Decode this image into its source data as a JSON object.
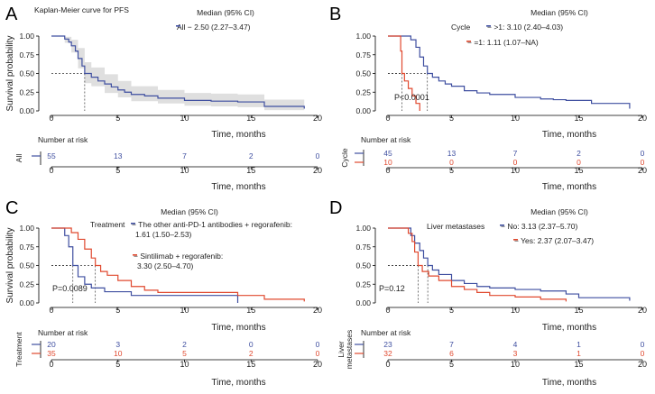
{
  "colors": {
    "blue": "#3f4fa0",
    "red": "#e0492f",
    "band": "#d9d9d9",
    "axis": "#000000",
    "text": "#222222"
  },
  "chart_data": [
    {
      "type": "line",
      "panel_letter": "A",
      "title": "Kaplan-Meier curve for PFS",
      "xlabel": "Time, months",
      "ylabel": "Survival probability",
      "xlim": [
        0,
        20
      ],
      "ylim": [
        0,
        1
      ],
      "x_ticks": [
        "0",
        "5",
        "10",
        "15",
        "20"
      ],
      "y_ticks": [
        "0.00",
        "0.25",
        "0.50",
        "0.75",
        "1.00"
      ],
      "legend_title": "Median (95% CI)",
      "pvalue": "",
      "group_label": "",
      "risk_title": "Number at risk",
      "risk_axis_label": "All",
      "risk_times": [
        0,
        5,
        10,
        15,
        20
      ],
      "series": [
        {
          "name": "All",
          "legend_text": "All  − 2.50 (2.27–3.47)",
          "legend_text2": "",
          "color": "blue",
          "median": 2.5,
          "points": [
            [
              0,
              1.0
            ],
            [
              0.8,
              1.0
            ],
            [
              1.0,
              0.96
            ],
            [
              1.3,
              0.92
            ],
            [
              1.5,
              0.87
            ],
            [
              1.8,
              0.8
            ],
            [
              2.0,
              0.7
            ],
            [
              2.3,
              0.6
            ],
            [
              2.5,
              0.5
            ],
            [
              3.0,
              0.45
            ],
            [
              3.5,
              0.4
            ],
            [
              4.0,
              0.36
            ],
            [
              4.5,
              0.32
            ],
            [
              5.0,
              0.28
            ],
            [
              5.5,
              0.25
            ],
            [
              6.0,
              0.22
            ],
            [
              7.0,
              0.2
            ],
            [
              8.0,
              0.17
            ],
            [
              10.0,
              0.14
            ],
            [
              12.0,
              0.13
            ],
            [
              14.0,
              0.12
            ],
            [
              16.0,
              0.06
            ],
            [
              19.0,
              0.03
            ]
          ],
          "band_upper": [
            [
              0,
              1.0
            ],
            [
              1.0,
              0.99
            ],
            [
              1.5,
              0.95
            ],
            [
              2.0,
              0.84
            ],
            [
              2.5,
              0.65
            ],
            [
              3.0,
              0.58
            ],
            [
              4.0,
              0.49
            ],
            [
              5.0,
              0.4
            ],
            [
              6.0,
              0.33
            ],
            [
              8.0,
              0.28
            ],
            [
              10.0,
              0.24
            ],
            [
              12.0,
              0.23
            ],
            [
              14.0,
              0.22
            ],
            [
              16.0,
              0.15
            ],
            [
              19.0,
              0.09
            ]
          ],
          "band_lower": [
            [
              0,
              1.0
            ],
            [
              1.0,
              0.91
            ],
            [
              1.5,
              0.78
            ],
            [
              2.0,
              0.57
            ],
            [
              2.5,
              0.37
            ],
            [
              3.0,
              0.33
            ],
            [
              4.0,
              0.24
            ],
            [
              5.0,
              0.18
            ],
            [
              6.0,
              0.13
            ],
            [
              8.0,
              0.1
            ],
            [
              10.0,
              0.07
            ],
            [
              12.0,
              0.06
            ],
            [
              14.0,
              0.05
            ],
            [
              16.0,
              0.01
            ],
            [
              19.0,
              0.0
            ]
          ],
          "risk": [
            "55",
            "13",
            "7",
            "2",
            "0"
          ]
        }
      ]
    },
    {
      "type": "line",
      "panel_letter": "B",
      "title": "",
      "xlabel": "Time, months",
      "ylabel": "",
      "xlim": [
        0,
        20
      ],
      "ylim": [
        0,
        1
      ],
      "x_ticks": [
        "0",
        "5",
        "10",
        "15",
        "20"
      ],
      "y_ticks": [
        "0.00",
        "0.25",
        "0.50",
        "0.75",
        "1.00"
      ],
      "legend_title": "Median (95% CI)",
      "pvalue": "P<0.0001",
      "group_label": "Cycle",
      "risk_title": "Number at risk",
      "risk_axis_label": "Cycle",
      "risk_times": [
        0,
        5,
        10,
        15,
        20
      ],
      "series": [
        {
          "name": ">1",
          "legend_text": "− >1: 3.10 (2.40–4.03)",
          "legend_text2": "",
          "color": "blue",
          "median": 3.1,
          "points": [
            [
              0,
              1.0
            ],
            [
              1.5,
              1.0
            ],
            [
              1.8,
              0.95
            ],
            [
              2.2,
              0.85
            ],
            [
              2.5,
              0.72
            ],
            [
              2.8,
              0.6
            ],
            [
              3.1,
              0.5
            ],
            [
              3.5,
              0.45
            ],
            [
              4.0,
              0.4
            ],
            [
              4.5,
              0.36
            ],
            [
              5.0,
              0.33
            ],
            [
              6.0,
              0.27
            ],
            [
              7.0,
              0.24
            ],
            [
              8.0,
              0.22
            ],
            [
              10.0,
              0.18
            ],
            [
              12.0,
              0.16
            ],
            [
              13.0,
              0.15
            ],
            [
              14.0,
              0.14
            ],
            [
              16.0,
              0.1
            ],
            [
              19.0,
              0.03
            ]
          ],
          "risk": [
            "45",
            "13",
            "7",
            "2",
            "0"
          ]
        },
        {
          "name": "=1",
          "legend_text": "− =1: 1.11 (1.07–NA)",
          "legend_text2": "",
          "color": "red",
          "median": 1.11,
          "points": [
            [
              0,
              1.0
            ],
            [
              0.9,
              1.0
            ],
            [
              1.0,
              0.8
            ],
            [
              1.1,
              0.5
            ],
            [
              1.3,
              0.4
            ],
            [
              1.6,
              0.3
            ],
            [
              1.9,
              0.2
            ],
            [
              2.2,
              0.1
            ],
            [
              2.5,
              0.0
            ]
          ],
          "risk": [
            "10",
            "0",
            "0",
            "0",
            "0"
          ]
        }
      ]
    },
    {
      "type": "line",
      "panel_letter": "C",
      "title": "",
      "xlabel": "Time, months",
      "ylabel": "Survival probability",
      "xlim": [
        0,
        20
      ],
      "ylim": [
        0,
        1
      ],
      "x_ticks": [
        "0",
        "5",
        "10",
        "15",
        "20"
      ],
      "y_ticks": [
        "0.00",
        "0.25",
        "0.50",
        "0.75",
        "1.00"
      ],
      "legend_title": "Median (95% CI)",
      "pvalue": "P=0.0089",
      "group_label": "Treatment",
      "risk_title": "Number at risk",
      "risk_axis_label": "Treatment",
      "risk_times": [
        0,
        5,
        10,
        15,
        20
      ],
      "series": [
        {
          "name": "The other anti-PD-1 antibodies + regorafenib",
          "legend_text": "− The other anti-PD-1 antibodies + regorafenib:",
          "legend_text2": "1.61 (1.50–2.53)",
          "color": "blue",
          "median": 1.61,
          "points": [
            [
              0,
              1.0
            ],
            [
              0.7,
              1.0
            ],
            [
              1.0,
              0.9
            ],
            [
              1.3,
              0.75
            ],
            [
              1.61,
              0.5
            ],
            [
              2.0,
              0.35
            ],
            [
              2.5,
              0.25
            ],
            [
              3.0,
              0.2
            ],
            [
              4.0,
              0.15
            ],
            [
              6.0,
              0.1
            ],
            [
              8.0,
              0.1
            ],
            [
              10.0,
              0.1
            ],
            [
              12.0,
              0.1
            ],
            [
              14.0,
              0.0
            ]
          ],
          "risk": [
            "20",
            "3",
            "2",
            "0",
            "0"
          ]
        },
        {
          "name": "Sintilimab + regorafenib",
          "legend_text": "− Sintilimab + regorafenib:",
          "legend_text2": "3.30 (2.50–4.70)",
          "color": "red",
          "median": 3.3,
          "points": [
            [
              0,
              1.0
            ],
            [
              1.0,
              1.0
            ],
            [
              1.5,
              0.94
            ],
            [
              2.0,
              0.85
            ],
            [
              2.5,
              0.72
            ],
            [
              3.0,
              0.6
            ],
            [
              3.3,
              0.5
            ],
            [
              3.7,
              0.42
            ],
            [
              4.2,
              0.37
            ],
            [
              5.0,
              0.3
            ],
            [
              6.0,
              0.22
            ],
            [
              7.0,
              0.17
            ],
            [
              8.0,
              0.14
            ],
            [
              10.0,
              0.14
            ],
            [
              12.0,
              0.14
            ],
            [
              14.0,
              0.1
            ],
            [
              16.0,
              0.05
            ],
            [
              19.0,
              0.02
            ]
          ],
          "risk": [
            "35",
            "10",
            "5",
            "2",
            "0"
          ]
        }
      ]
    },
    {
      "type": "line",
      "panel_letter": "D",
      "title": "",
      "xlabel": "Time, months",
      "ylabel": "",
      "xlim": [
        0,
        20
      ],
      "ylim": [
        0,
        1
      ],
      "x_ticks": [
        "0",
        "5",
        "10",
        "15",
        "20"
      ],
      "y_ticks": [
        "0.00",
        "0.25",
        "0.50",
        "0.75",
        "1.00"
      ],
      "legend_title": "Median (95% CI)",
      "pvalue": "P=0.12",
      "group_label": "Liver metastases",
      "risk_title": "Number at risk",
      "risk_axis_label": "Liver metastases",
      "risk_times": [
        0,
        5,
        10,
        15,
        20
      ],
      "series": [
        {
          "name": "No",
          "legend_text": "− No: 3.13 (2.37–5.70)",
          "legend_text2": "",
          "color": "blue",
          "median": 3.13,
          "points": [
            [
              0,
              1.0
            ],
            [
              1.5,
              1.0
            ],
            [
              1.8,
              0.9
            ],
            [
              2.1,
              0.8
            ],
            [
              2.5,
              0.7
            ],
            [
              2.8,
              0.6
            ],
            [
              3.13,
              0.5
            ],
            [
              3.5,
              0.44
            ],
            [
              4.0,
              0.38
            ],
            [
              5.0,
              0.3
            ],
            [
              6.0,
              0.26
            ],
            [
              7.0,
              0.22
            ],
            [
              8.0,
              0.2
            ],
            [
              10.0,
              0.18
            ],
            [
              12.0,
              0.16
            ],
            [
              14.0,
              0.12
            ],
            [
              15.0,
              0.07
            ],
            [
              19.0,
              0.03
            ]
          ],
          "risk": [
            "23",
            "7",
            "4",
            "1",
            "0"
          ]
        },
        {
          "name": "Yes",
          "legend_text": "− Yes: 2.37 (2.07–3.47)",
          "legend_text2": "",
          "color": "red",
          "median": 2.37,
          "points": [
            [
              0,
              1.0
            ],
            [
              1.3,
              1.0
            ],
            [
              1.6,
              0.93
            ],
            [
              1.9,
              0.82
            ],
            [
              2.1,
              0.68
            ],
            [
              2.37,
              0.5
            ],
            [
              2.7,
              0.42
            ],
            [
              3.2,
              0.36
            ],
            [
              4.0,
              0.3
            ],
            [
              5.0,
              0.22
            ],
            [
              6.0,
              0.18
            ],
            [
              7.0,
              0.14
            ],
            [
              8.0,
              0.1
            ],
            [
              10.0,
              0.08
            ],
            [
              12.0,
              0.05
            ],
            [
              14.0,
              0.02
            ]
          ],
          "risk": [
            "32",
            "6",
            "3",
            "1",
            "0"
          ]
        }
      ]
    }
  ]
}
